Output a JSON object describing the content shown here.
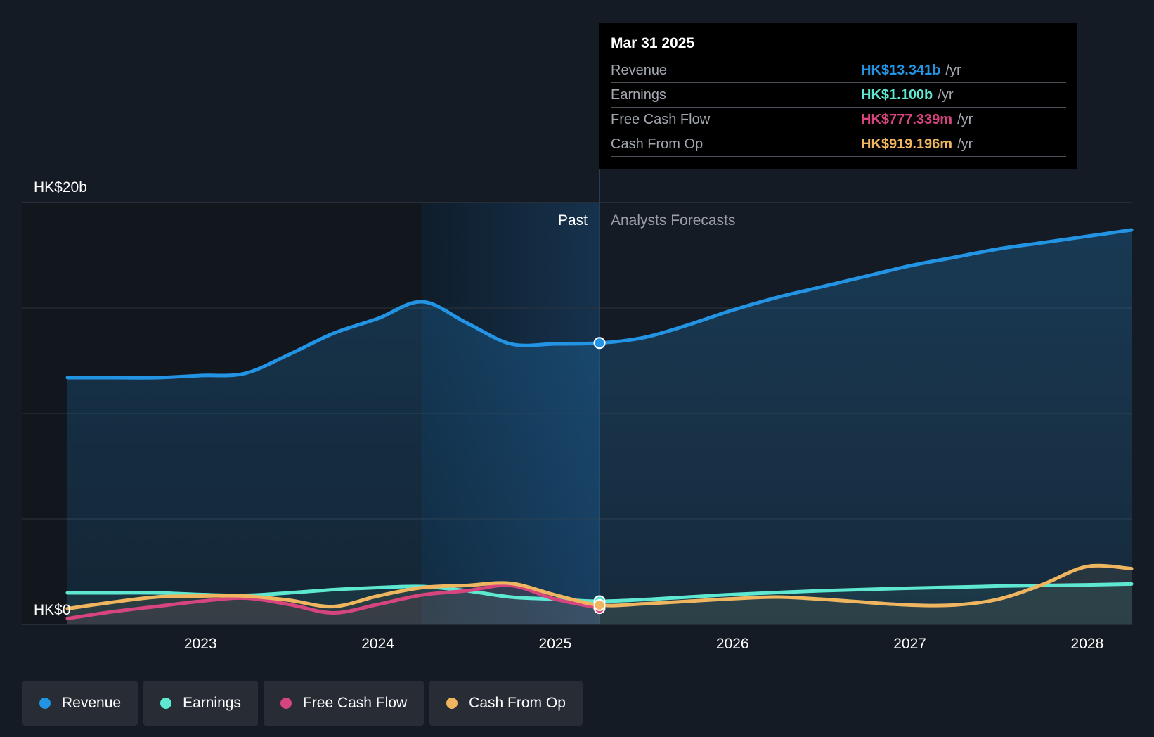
{
  "colors": {
    "revenue": "#2394e3",
    "earnings": "#5ee8d2",
    "free_cash_flow": "#d6457d",
    "cash_from_op": "#efb55f",
    "grid": "#2c333d",
    "past_shade": "#12161d",
    "highlight_shade": "#16324d",
    "axis_text": "#ffffff",
    "muted_text": "#9a9fa7"
  },
  "tooltip": {
    "date": "Mar 31 2025",
    "rows": [
      {
        "label": "Revenue",
        "value": "HK$13.341b",
        "unit": "/yr",
        "color": "#2394e3"
      },
      {
        "label": "Earnings",
        "value": "HK$1.100b",
        "unit": "/yr",
        "color": "#5ee8d2"
      },
      {
        "label": "Free Cash Flow",
        "value": "HK$777.339m",
        "unit": "/yr",
        "color": "#d6457d"
      },
      {
        "label": "Cash From Op",
        "value": "HK$919.196m",
        "unit": "/yr",
        "color": "#efb55f"
      }
    ]
  },
  "legend": [
    {
      "label": "Revenue",
      "color": "#2394e3"
    },
    {
      "label": "Earnings",
      "color": "#5ee8d2"
    },
    {
      "label": "Free Cash Flow",
      "color": "#d6457d"
    },
    {
      "label": "Cash From Op",
      "color": "#efb55f"
    }
  ],
  "chart_data": {
    "type": "line",
    "title": "",
    "xlabel": "",
    "ylabel": "",
    "x_range": [
      2022.18,
      2028.25
    ],
    "ylim": [
      0,
      20
    ],
    "y_units": "HK$ billions",
    "y_tick_labels": [
      {
        "value": 20,
        "label": "HK$20b"
      },
      {
        "value": 0,
        "label": "HK$0"
      }
    ],
    "gridlines": [
      0,
      5,
      10,
      15,
      20
    ],
    "x_ticks": [
      2023,
      2024,
      2025,
      2026,
      2027,
      2028
    ],
    "past_label": "Past",
    "forecast_label": "Analysts Forecasts",
    "divider_x": 2025.25,
    "highlight_range": [
      2024.25,
      2025.25
    ],
    "series": [
      {
        "name": "Revenue",
        "key": "revenue",
        "points": [
          [
            2022.25,
            11.7
          ],
          [
            2022.5,
            11.7
          ],
          [
            2022.75,
            11.7
          ],
          [
            2023.0,
            11.8
          ],
          [
            2023.25,
            11.9
          ],
          [
            2023.5,
            12.8
          ],
          [
            2023.75,
            13.8
          ],
          [
            2024.0,
            14.5
          ],
          [
            2024.25,
            15.3
          ],
          [
            2024.5,
            14.3
          ],
          [
            2024.75,
            13.3
          ],
          [
            2025.0,
            13.3
          ],
          [
            2025.25,
            13.34
          ],
          [
            2025.5,
            13.6
          ],
          [
            2025.75,
            14.2
          ],
          [
            2026.0,
            14.9
          ],
          [
            2026.25,
            15.5
          ],
          [
            2026.5,
            16.0
          ],
          [
            2026.75,
            16.5
          ],
          [
            2027.0,
            17.0
          ],
          [
            2027.25,
            17.4
          ],
          [
            2027.5,
            17.8
          ],
          [
            2027.75,
            18.1
          ],
          [
            2028.0,
            18.4
          ],
          [
            2028.25,
            18.7
          ]
        ]
      },
      {
        "name": "Earnings",
        "key": "earnings",
        "points": [
          [
            2022.25,
            1.5
          ],
          [
            2022.5,
            1.5
          ],
          [
            2022.75,
            1.5
          ],
          [
            2023.0,
            1.42
          ],
          [
            2023.25,
            1.38
          ],
          [
            2023.5,
            1.5
          ],
          [
            2023.75,
            1.65
          ],
          [
            2024.0,
            1.75
          ],
          [
            2024.25,
            1.8
          ],
          [
            2024.5,
            1.6
          ],
          [
            2024.75,
            1.3
          ],
          [
            2025.0,
            1.2
          ],
          [
            2025.25,
            1.1
          ],
          [
            2025.5,
            1.18
          ],
          [
            2025.75,
            1.3
          ],
          [
            2026.0,
            1.42
          ],
          [
            2026.5,
            1.6
          ],
          [
            2027.0,
            1.72
          ],
          [
            2027.5,
            1.82
          ],
          [
            2028.0,
            1.88
          ],
          [
            2028.25,
            1.92
          ]
        ]
      },
      {
        "name": "Free Cash Flow",
        "key": "free_cash_flow",
        "points": [
          [
            2022.25,
            0.28
          ],
          [
            2022.5,
            0.6
          ],
          [
            2022.75,
            0.85
          ],
          [
            2023.0,
            1.1
          ],
          [
            2023.25,
            1.25
          ],
          [
            2023.5,
            0.95
          ],
          [
            2023.75,
            0.55
          ],
          [
            2024.0,
            0.95
          ],
          [
            2024.25,
            1.4
          ],
          [
            2024.5,
            1.6
          ],
          [
            2024.75,
            1.85
          ],
          [
            2025.0,
            1.2
          ],
          [
            2025.25,
            0.78
          ]
        ]
      },
      {
        "name": "Cash From Op",
        "key": "cash_from_op",
        "points": [
          [
            2022.25,
            0.75
          ],
          [
            2022.5,
            1.05
          ],
          [
            2022.75,
            1.3
          ],
          [
            2023.0,
            1.35
          ],
          [
            2023.25,
            1.35
          ],
          [
            2023.5,
            1.15
          ],
          [
            2023.75,
            0.85
          ],
          [
            2024.0,
            1.35
          ],
          [
            2024.25,
            1.75
          ],
          [
            2024.5,
            1.85
          ],
          [
            2024.75,
            1.95
          ],
          [
            2025.0,
            1.4
          ],
          [
            2025.25,
            0.92
          ],
          [
            2025.5,
            0.98
          ],
          [
            2025.75,
            1.1
          ],
          [
            2026.0,
            1.22
          ],
          [
            2026.25,
            1.3
          ],
          [
            2026.5,
            1.2
          ],
          [
            2026.75,
            1.05
          ],
          [
            2027.0,
            0.92
          ],
          [
            2027.25,
            0.92
          ],
          [
            2027.5,
            1.2
          ],
          [
            2027.75,
            1.9
          ],
          [
            2028.0,
            2.75
          ],
          [
            2028.25,
            2.65
          ]
        ]
      }
    ]
  }
}
